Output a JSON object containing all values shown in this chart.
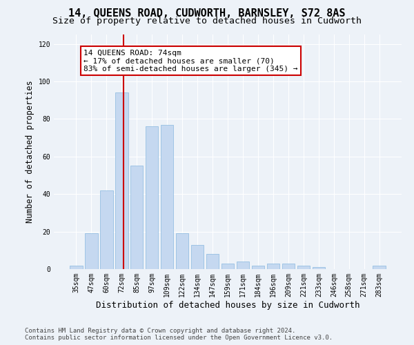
{
  "title": "14, QUEENS ROAD, CUDWORTH, BARNSLEY, S72 8AS",
  "subtitle": "Size of property relative to detached houses in Cudworth",
  "xlabel": "Distribution of detached houses by size in Cudworth",
  "ylabel": "Number of detached properties",
  "categories": [
    "35sqm",
    "47sqm",
    "60sqm",
    "72sqm",
    "85sqm",
    "97sqm",
    "109sqm",
    "122sqm",
    "134sqm",
    "147sqm",
    "159sqm",
    "171sqm",
    "184sqm",
    "196sqm",
    "209sqm",
    "221sqm",
    "233sqm",
    "246sqm",
    "258sqm",
    "271sqm",
    "283sqm"
  ],
  "values": [
    2,
    19,
    42,
    94,
    55,
    76,
    77,
    19,
    13,
    8,
    3,
    4,
    2,
    3,
    3,
    2,
    1,
    0,
    0,
    0,
    2
  ],
  "bar_color": "#c5d8f0",
  "bar_edge_color": "#88b8e0",
  "vline_color": "#cc0000",
  "vline_xindex": 3.15,
  "annotation_text": "14 QUEENS ROAD: 74sqm\n← 17% of detached houses are smaller (70)\n83% of semi-detached houses are larger (345) →",
  "annotation_box_facecolor": "white",
  "annotation_box_edgecolor": "#cc0000",
  "ylim": [
    0,
    125
  ],
  "yticks": [
    0,
    20,
    40,
    60,
    80,
    100,
    120
  ],
  "footer_line1": "Contains HM Land Registry data © Crown copyright and database right 2024.",
  "footer_line2": "Contains public sector information licensed under the Open Government Licence v3.0.",
  "bg_color": "#edf2f8",
  "title_fontsize": 11,
  "subtitle_fontsize": 9.5,
  "xlabel_fontsize": 9,
  "ylabel_fontsize": 8.5,
  "footer_fontsize": 6.5,
  "annotation_fontsize": 8,
  "tick_fontsize": 7
}
